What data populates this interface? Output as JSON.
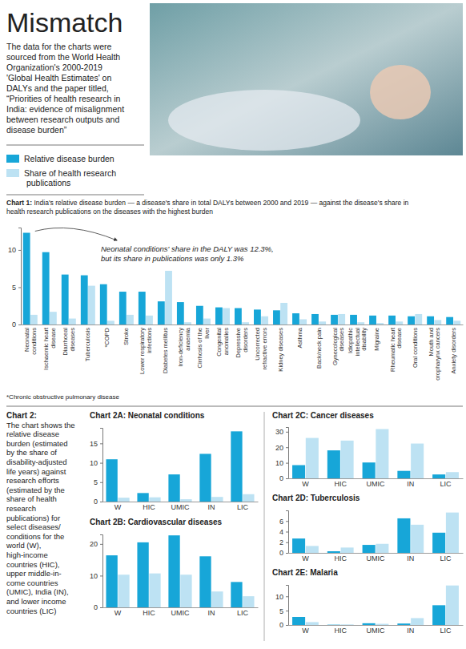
{
  "header": {
    "title": "Mismatch",
    "description": [
      "The data for the charts were",
      "sourced from the World Health",
      "Organization's 2000-2019",
      "'Global Health Estimates' on",
      "DALYs and the paper titled,",
      "“Priorities of health research in",
      "India: evidence of misalignment",
      "between research outputs and",
      "disease burden”"
    ]
  },
  "footnote": "*Chronic obstructive pulmonary disease",
  "chart2_intro": [
    "Chart 2:",
    "The chart shows the",
    "relative disease",
    "burden (estimated",
    "by the share of",
    "disability-adjusted",
    "life years) against",
    "research efforts",
    "(estimated by the",
    "share of health",
    "research",
    "publications) for",
    "select diseases/",
    "conditions for the",
    "world (W),",
    "high-income",
    "countries (HIC),",
    "upper middle-in-",
    "come countries",
    "(UMIC), India (IN),",
    "and lower income",
    "countries (LIC)"
  ],
  "chart_data": [
    {
      "type": "bar",
      "title": [
        "Chart 1: India's relative disease burden — a disease's share in total DALYs between 2000 and 2019 — against the disease's share in",
        "health research publications on the diseases with the highest burden"
      ],
      "categories": [
        "Neonatal conditions",
        "Ischaemic heart disease",
        "Diarrhoeal diseases",
        "Tuberculosis",
        "*COPD",
        "Stroke",
        "Lower respiratory infections",
        "Diabetes mellitus",
        "Iron-deficiency anaemia",
        "Cirrhosis of the liver",
        "Congenital anomalies",
        "Depressive disorders",
        "Uncorrected refractive errors",
        "Kidney diseases",
        "Asthma",
        "Back/neck pain",
        "Gynecological diseases",
        "Idiopathic intellectual disability",
        "Migraine",
        "Rheumatic heart disease",
        "Oral conditions",
        "Mouth and oropharynx cancers",
        "Anxiety disorders"
      ],
      "series": [
        {
          "name": "Relative disease burden",
          "color": "#17a6d8",
          "values": [
            12.3,
            9.7,
            6.7,
            6.6,
            5.4,
            4.4,
            4.4,
            3.1,
            3.0,
            2.5,
            2.3,
            2.2,
            2.0,
            1.9,
            1.5,
            1.4,
            1.3,
            1.3,
            1.2,
            1.2,
            1.1,
            1.1,
            1.0
          ]
        },
        {
          "name": "Share of health research publications",
          "color": "#bde2f3",
          "values": [
            1.3,
            1.7,
            0.8,
            5.2,
            0.5,
            1.3,
            1.2,
            7.2,
            0.3,
            0.8,
            2.2,
            0.3,
            1.1,
            2.9,
            0.7,
            0.4,
            1.4,
            0.3,
            0.2,
            0.4,
            1.4,
            0.6,
            0.5
          ]
        }
      ],
      "ylim": [
        0,
        13
      ],
      "yticks": [
        0,
        5,
        10
      ],
      "grid": false,
      "annotation": [
        "Neonatal conditions' share in the DALY was 12.3%,",
        "but its share in publications was only 1.3%"
      ]
    },
    {
      "type": "bar",
      "title": "Chart 2A: Neonatal conditions",
      "categories": [
        "W",
        "HIC",
        "UMIC",
        "IN",
        "LIC"
      ],
      "series": [
        {
          "color": "#17a6d8",
          "values": [
            10.9,
            2.2,
            7.0,
            12.3,
            18.1
          ]
        },
        {
          "color": "#bde2f3",
          "values": [
            1.0,
            1.1,
            0.6,
            1.2,
            1.9
          ]
        }
      ],
      "ylim": [
        0,
        19
      ],
      "yticks": [
        0,
        5,
        10,
        15
      ],
      "grid": false
    },
    {
      "type": "bar",
      "title": "Chart 2B: Cardiovascular diseases",
      "categories": [
        "W",
        "HIC",
        "UMIC",
        "IN",
        "LIC"
      ],
      "series": [
        {
          "color": "#17a6d8",
          "values": [
            16.4,
            20.5,
            22.7,
            16.1,
            8.0
          ]
        },
        {
          "color": "#bde2f3",
          "values": [
            10.3,
            10.7,
            10.3,
            5.0,
            3.5
          ]
        }
      ],
      "ylim": [
        0,
        23
      ],
      "yticks": [
        0,
        10,
        20
      ],
      "grid": false
    },
    {
      "type": "bar",
      "title": "Chart 2C: Cancer diseases",
      "categories": [
        "W",
        "HIC",
        "UMIC",
        "IN",
        "LIC"
      ],
      "series": [
        {
          "color": "#17a6d8",
          "values": [
            8.5,
            18.0,
            10.2,
            4.8,
            2.5
          ]
        },
        {
          "color": "#bde2f3",
          "values": [
            26.0,
            24.3,
            31.7,
            22.4,
            4.0
          ]
        }
      ],
      "ylim": [
        0,
        33
      ],
      "yticks": [
        0,
        10,
        20,
        30
      ],
      "grid": false
    },
    {
      "type": "bar",
      "title": "Chart 2D: Tuberculosis",
      "categories": [
        "W",
        "HIC",
        "UMIC",
        "IN",
        "LIC"
      ],
      "series": [
        {
          "color": "#17a6d8",
          "values": [
            2.7,
            0.3,
            1.5,
            6.5,
            3.8
          ]
        },
        {
          "color": "#bde2f3",
          "values": [
            1.3,
            1.0,
            1.7,
            5.3,
            7.6
          ]
        }
      ],
      "ylim": [
        0,
        8
      ],
      "yticks": [
        0,
        2,
        4,
        6
      ],
      "grid": false
    },
    {
      "type": "bar",
      "title": "Chart 2E: Malaria",
      "categories": [
        "W",
        "HIC",
        "UMIC",
        "IN",
        "LIC"
      ],
      "series": [
        {
          "color": "#17a6d8",
          "values": [
            2.8,
            0.1,
            0.6,
            0.5,
            6.9
          ]
        },
        {
          "color": "#bde2f3",
          "values": [
            1.0,
            0.2,
            0.4,
            2.4,
            13.8
          ]
        }
      ],
      "ylim": [
        0,
        14
      ],
      "yticks": [
        0,
        5,
        10
      ],
      "grid": false
    }
  ]
}
